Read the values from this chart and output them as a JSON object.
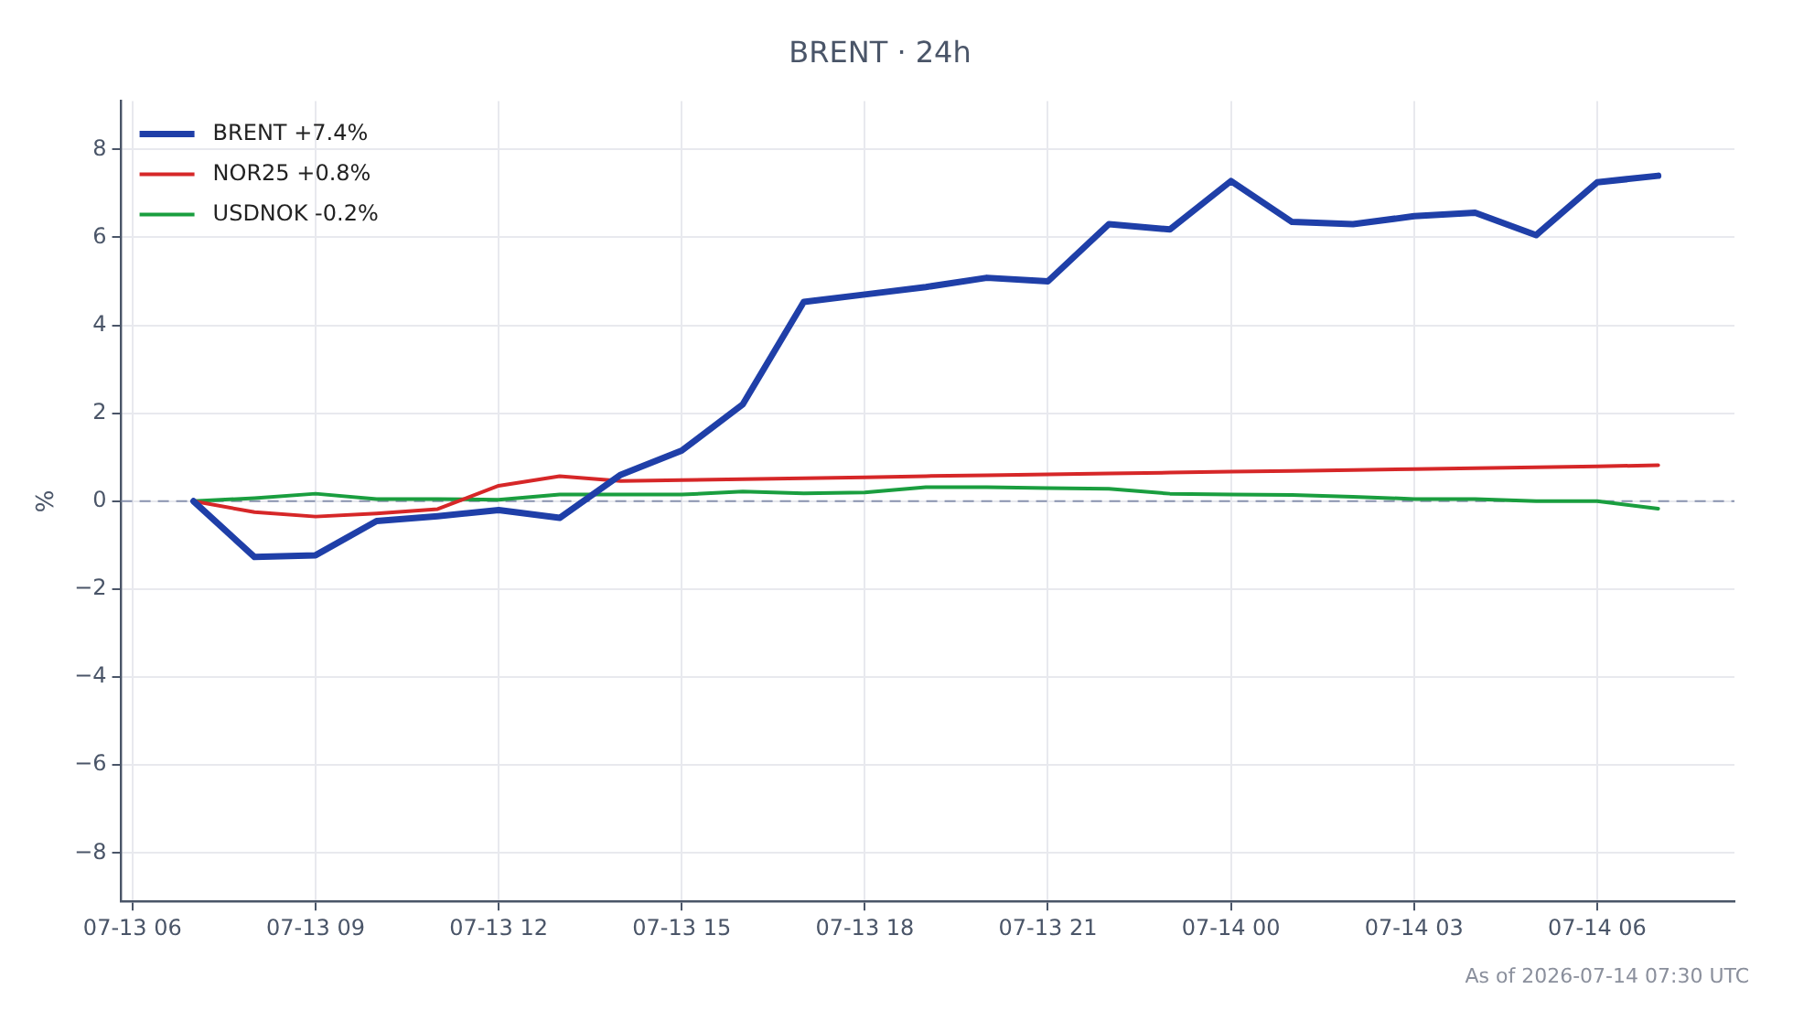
{
  "chart_data": {
    "type": "line",
    "title": "BRENT · 24h",
    "ylabel": "%",
    "x": [
      "2026-07-13T07:00",
      "2026-07-13T08:00",
      "2026-07-13T09:00",
      "2026-07-13T10:00",
      "2026-07-13T11:00",
      "2026-07-13T12:00",
      "2026-07-13T13:00",
      "2026-07-13T14:00",
      "2026-07-13T15:00",
      "2026-07-13T16:00",
      "2026-07-13T17:00",
      "2026-07-13T18:00",
      "2026-07-13T19:00",
      "2026-07-13T20:00",
      "2026-07-13T21:00",
      "2026-07-13T22:00",
      "2026-07-13T23:00",
      "2026-07-14T00:00",
      "2026-07-14T01:00",
      "2026-07-14T02:00",
      "2026-07-14T03:00",
      "2026-07-14T04:00",
      "2026-07-14T05:00",
      "2026-07-14T06:00",
      "2026-07-14T07:00"
    ],
    "series": [
      {
        "name": "BRENT +7.4%",
        "color": "#1f3fa8",
        "values": [
          0,
          -1.27,
          -1.23,
          -0.45,
          -0.34,
          -0.2,
          -0.38,
          0.6,
          1.15,
          2.2,
          4.53,
          4.7,
          4.87,
          5.08,
          5.0,
          6.3,
          6.18,
          7.28,
          6.35,
          6.3,
          6.48,
          6.56,
          6.05,
          7.25,
          7.4
        ]
      },
      {
        "name": "NOR25 +0.8%",
        "color": "#d62728",
        "values": [
          0,
          -0.25,
          -0.35,
          -0.28,
          -0.18,
          0.35,
          0.57,
          0.46,
          0.48,
          0.5,
          0.52,
          0.54,
          0.57,
          0.59,
          0.61,
          0.63,
          0.65,
          0.67,
          0.69,
          0.71,
          0.73,
          0.75,
          0.77,
          0.79,
          0.82
        ]
      },
      {
        "name": "USDNOK -0.2%",
        "color": "#1a9e3f",
        "values": [
          0,
          0.07,
          0.17,
          0.05,
          0.05,
          0.03,
          0.15,
          0.15,
          0.15,
          0.22,
          0.18,
          0.2,
          0.32,
          0.32,
          0.3,
          0.28,
          0.17,
          0.15,
          0.14,
          0.1,
          0.05,
          0.05,
          0.0,
          0.0,
          -0.17
        ]
      }
    ],
    "xlim": [
      "2026-07-13T05:49",
      "2026-07-14T08:15"
    ],
    "xticks": [
      {
        "value": "2026-07-13T06:00",
        "label": "07-13 06"
      },
      {
        "value": "2026-07-13T09:00",
        "label": "07-13 09"
      },
      {
        "value": "2026-07-13T12:00",
        "label": "07-13 12"
      },
      {
        "value": "2026-07-13T15:00",
        "label": "07-13 15"
      },
      {
        "value": "2026-07-13T18:00",
        "label": "07-13 18"
      },
      {
        "value": "2026-07-13T21:00",
        "label": "07-13 21"
      },
      {
        "value": "2026-07-14T00:00",
        "label": "07-14 00"
      },
      {
        "value": "2026-07-14T03:00",
        "label": "07-14 03"
      },
      {
        "value": "2026-07-14T06:00",
        "label": "07-14 06"
      }
    ],
    "ylim": [
      -9.1,
      9.1
    ],
    "yticks": [
      {
        "value": -8,
        "label": "−8"
      },
      {
        "value": -6,
        "label": "−6"
      },
      {
        "value": -4,
        "label": "−4"
      },
      {
        "value": -2,
        "label": "−2"
      },
      0,
      2,
      4,
      6,
      8
    ],
    "ref_lines": [
      {
        "axis": "y",
        "value": 0,
        "color": "#8a94b0",
        "line_style": "dashed"
      }
    ],
    "grid": true,
    "legend": "top left",
    "marker": "none",
    "line_style": "solid",
    "annotations": [
      "As of 2026-07-14 07:30 UTC"
    ]
  }
}
